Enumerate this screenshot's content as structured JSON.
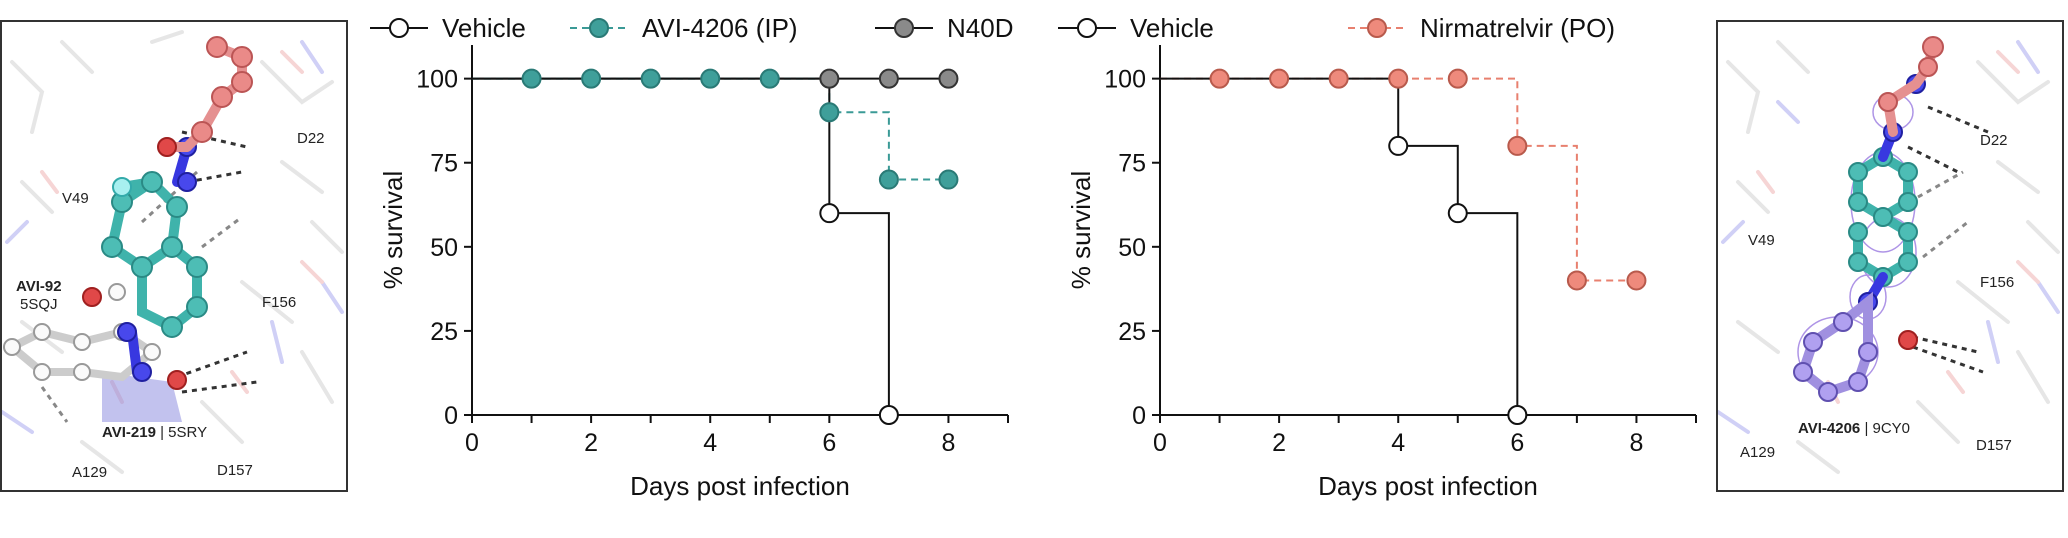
{
  "colors": {
    "vehicle": "#111111",
    "avi4206": "#3a9a96",
    "avi4206_fill": "#3f9f9a",
    "n40d_fill": "#8a8a8a",
    "nirmatrelvir": "#e8806f",
    "nirmatrelvir_fill": "#ee8a7c",
    "ligand_teal": "#4dbdb5",
    "ligand_blue": "#3838e0",
    "ligand_red": "#e05050",
    "ligand_salmon": "#e8908a",
    "density_purple": "#9a7ae0"
  },
  "left_structure": {
    "residues": {
      "d22": "D22",
      "v49": "V49",
      "f156": "F156",
      "a129": "A129",
      "d157": "D157"
    },
    "ligand1_name": "AVI-92",
    "ligand1_pdb": "5SQJ",
    "ligand2_name": "AVI-219",
    "ligand2_pdb": "| 5SRY"
  },
  "right_structure": {
    "residues": {
      "d22": "D22",
      "v49": "V49",
      "f156": "F156",
      "a129": "A129",
      "d157": "D157"
    },
    "ligand_name": "AVI-4206",
    "ligand_pdb": "| 9CY0"
  },
  "chart_data": [
    {
      "type": "line",
      "step": true,
      "xlabel": "Days post infection",
      "ylabel": "% survival",
      "xlim": [
        0,
        9
      ],
      "ylim": [
        0,
        110
      ],
      "xticks": [
        "0",
        "2",
        "4",
        "6",
        "8"
      ],
      "yticks": [
        "0",
        "25",
        "50",
        "75",
        "100"
      ],
      "legend_placement": "top",
      "series": [
        {
          "name": "Vehicle",
          "color_key": "vehicle",
          "marker": "open-circle",
          "dashed": false,
          "x": [
            0,
            6,
            7
          ],
          "y": [
            100,
            60,
            0
          ],
          "markers": [
            {
              "x": 6,
              "y": 60
            },
            {
              "x": 7,
              "y": 0
            }
          ]
        },
        {
          "name": "AVI-4206 (IP)",
          "color_key": "avi4206",
          "marker": "filled-circle",
          "dashed": true,
          "x": [
            0,
            6,
            7,
            8
          ],
          "y": [
            100,
            90,
            70,
            70
          ],
          "markers": [
            {
              "x": 1,
              "y": 100
            },
            {
              "x": 2,
              "y": 100
            },
            {
              "x": 3,
              "y": 100
            },
            {
              "x": 4,
              "y": 100
            },
            {
              "x": 5,
              "y": 100
            },
            {
              "x": 6,
              "y": 90
            },
            {
              "x": 7,
              "y": 70
            },
            {
              "x": 8,
              "y": 70
            }
          ]
        },
        {
          "name": "N40D",
          "color_key": "n40d_fill",
          "marker": "gray-circle",
          "dashed": false,
          "x": [
            0,
            8
          ],
          "y": [
            100,
            100
          ],
          "markers": [
            {
              "x": 6,
              "y": 100
            },
            {
              "x": 7,
              "y": 100
            },
            {
              "x": 8,
              "y": 100
            }
          ]
        }
      ]
    },
    {
      "type": "line",
      "step": true,
      "xlabel": "Days post infection",
      "ylabel": "% survival",
      "xlim": [
        0,
        9
      ],
      "ylim": [
        0,
        110
      ],
      "xticks": [
        "0",
        "2",
        "4",
        "6",
        "8"
      ],
      "yticks": [
        "0",
        "25",
        "50",
        "75",
        "100"
      ],
      "legend_placement": "top",
      "series": [
        {
          "name": "Vehicle",
          "color_key": "vehicle",
          "marker": "open-circle",
          "dashed": false,
          "x": [
            0,
            4,
            5,
            6
          ],
          "y": [
            100,
            80,
            60,
            0
          ],
          "markers": [
            {
              "x": 4,
              "y": 80
            },
            {
              "x": 5,
              "y": 60
            },
            {
              "x": 6,
              "y": 0
            }
          ]
        },
        {
          "name": "Nirmatrelvir (PO)",
          "color_key": "nirmatrelvir",
          "marker": "filled-circle",
          "dashed": true,
          "x": [
            0,
            6,
            7,
            8
          ],
          "y": [
            100,
            80,
            40,
            40
          ],
          "markers": [
            {
              "x": 1,
              "y": 100
            },
            {
              "x": 2,
              "y": 100
            },
            {
              "x": 3,
              "y": 100
            },
            {
              "x": 4,
              "y": 100
            },
            {
              "x": 5,
              "y": 100
            },
            {
              "x": 6,
              "y": 80
            },
            {
              "x": 7,
              "y": 40
            },
            {
              "x": 8,
              "y": 40
            }
          ]
        }
      ]
    }
  ]
}
